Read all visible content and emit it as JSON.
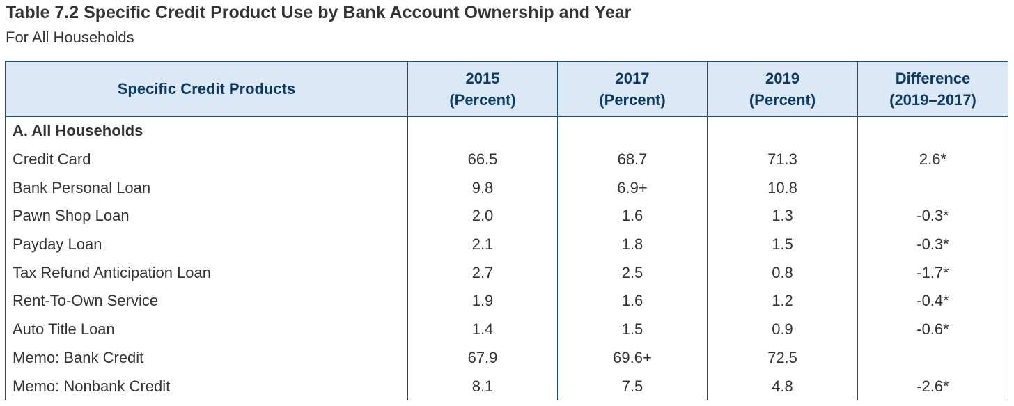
{
  "title": "Table 7.2 Specific Credit Product Use by Bank Account Ownership and Year",
  "subtitle": "For All Households",
  "table": {
    "headers": [
      {
        "line1": "Specific Credit Products",
        "line2": ""
      },
      {
        "line1": "2015",
        "line2": "(Percent)"
      },
      {
        "line1": "2017",
        "line2": "(Percent)"
      },
      {
        "line1": "2019",
        "line2": "(Percent)"
      },
      {
        "line1": "Difference",
        "line2": "(2019–2017)"
      }
    ],
    "section_label": "A. All Households",
    "rows": [
      {
        "label": "Credit Card",
        "y2015": "66.5",
        "y2017": "68.7",
        "y2019": "71.3",
        "diff": "2.6*"
      },
      {
        "label": "Bank Personal Loan",
        "y2015": "9.8",
        "y2017": "6.9+",
        "y2019": "10.8",
        "diff": ""
      },
      {
        "label": "Pawn Shop Loan",
        "y2015": "2.0",
        "y2017": "1.6",
        "y2019": "1.3",
        "diff": "-0.3*"
      },
      {
        "label": "Payday Loan",
        "y2015": "2.1",
        "y2017": "1.8",
        "y2019": "1.5",
        "diff": "-0.3*"
      },
      {
        "label": "Tax Refund Anticipation Loan",
        "y2015": "2.7",
        "y2017": "2.5",
        "y2019": "0.8",
        "diff": "-1.7*"
      },
      {
        "label": "Rent-To-Own Service",
        "y2015": "1.9",
        "y2017": "1.6",
        "y2019": "1.2",
        "diff": "-0.4*"
      },
      {
        "label": "Auto Title Loan",
        "y2015": "1.4",
        "y2017": "1.5",
        "y2019": "0.9",
        "diff": "-0.6*"
      },
      {
        "label": "Memo: Bank Credit",
        "y2015": "67.9",
        "y2017": "69.6+",
        "y2019": "72.5",
        "diff": ""
      },
      {
        "label": "Memo: Nonbank Credit",
        "y2015": "8.1",
        "y2017": "7.5",
        "y2019": "4.8",
        "diff": "-2.6*"
      }
    ]
  },
  "colors": {
    "header_bg": "#dbe8f5",
    "header_text": "#0b3a66",
    "border": "#1f4e79",
    "body_text": "#333333"
  }
}
